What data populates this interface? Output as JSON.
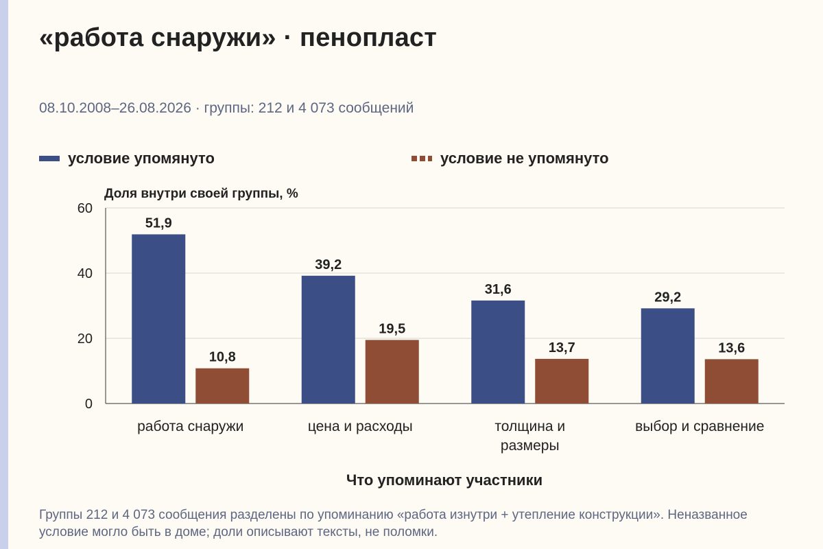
{
  "title": "«работа снаружи» · пенопласт",
  "subtitle": "08.10.2008–26.08.2026 · группы: 212 и 4 073 сообщений",
  "footnote": "Группы 212 и 4 073 сообщения разделены по упоминанию «работа изнутри + утепление конструкции». Неназванное условие могло быть в доме; доли описывают тексты, не поломки.",
  "colors": {
    "mentioned": "#3b4f86",
    "not_mentioned": "#8f4d35",
    "accent_bar": "#c9d1ea"
  },
  "chart_data": {
    "type": "bar",
    "title": "«работа снаружи» · пенопласт",
    "ylabel": "Доля внутри своей группы, %",
    "xlabel": "Что упоминают участники",
    "ylim": [
      0,
      60
    ],
    "yticks": [
      0,
      20,
      40,
      60
    ],
    "grid": true,
    "legend_position": "top",
    "categories": [
      "работа снаружи",
      "цена и расходы",
      "толщина и размеры",
      "выбор и сравнение"
    ],
    "category_lines": [
      [
        "работа снаружи"
      ],
      [
        "цена и расходы"
      ],
      [
        "толщина и",
        "размеры"
      ],
      [
        "выбор и сравнение"
      ]
    ],
    "series": [
      {
        "name": "условие упомянуто",
        "values": [
          51.9,
          39.2,
          31.6,
          29.2
        ],
        "labels": [
          "51,9",
          "39,2",
          "31,6",
          "29,2"
        ],
        "color": "#3b4f86"
      },
      {
        "name": "условие не упомянуто",
        "values": [
          10.8,
          19.5,
          13.7,
          13.6
        ],
        "labels": [
          "10,8",
          "19,5",
          "13,7",
          "13,6"
        ],
        "color": "#8f4d35"
      }
    ]
  }
}
